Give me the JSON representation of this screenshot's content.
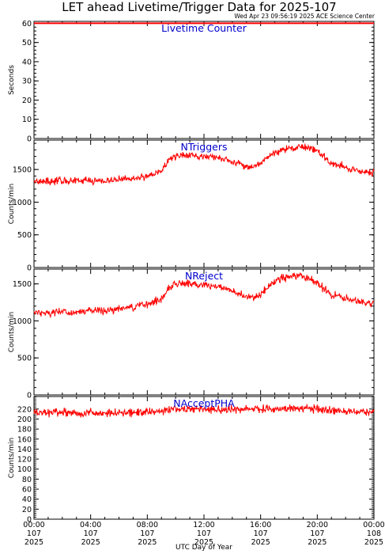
{
  "title": "LET ahead Livetime/Trigger Data for 2025-107",
  "timestamp": "Wed Apr 23 09:56:19 2025 ACE Science Center",
  "xlabel": "UTC Day of Year",
  "colors": {
    "series": "#ff0000",
    "panel_label": "#0000cc",
    "axes": "#000000"
  },
  "x_ticks": [
    {
      "hour": 0,
      "lines": [
        "00:00",
        "107",
        "2025"
      ]
    },
    {
      "hour": 4,
      "lines": [
        "04:00",
        "107",
        "2025"
      ]
    },
    {
      "hour": 8,
      "lines": [
        "08:00",
        "107",
        "2025"
      ]
    },
    {
      "hour": 12,
      "lines": [
        "12:00",
        "107",
        "2025"
      ]
    },
    {
      "hour": 16,
      "lines": [
        "16:00",
        "107",
        "2025"
      ]
    },
    {
      "hour": 20,
      "lines": [
        "20:00",
        "107",
        "2025"
      ]
    },
    {
      "hour": 24,
      "lines": [
        "00:00",
        "108",
        "2025"
      ]
    }
  ],
  "chart_data": [
    {
      "type": "line",
      "label": "Livetime Counter",
      "ylabel": "Seconds",
      "xlim": [
        0,
        24
      ],
      "ylim": [
        0,
        61
      ],
      "yticks": [
        0,
        10,
        20,
        30,
        40,
        50,
        60
      ],
      "series": [
        {
          "x": [
            0,
            24
          ],
          "values": [
            60,
            60
          ]
        }
      ]
    },
    {
      "type": "line",
      "label": "NTriggers",
      "ylabel": "Counts/min",
      "xlim": [
        0,
        24
      ],
      "ylim": [
        0,
        1950
      ],
      "yticks": [
        0,
        500,
        1000,
        1500
      ],
      "series": [
        {
          "x": [
            0,
            1,
            2,
            3,
            4,
            5,
            6,
            7,
            8,
            9,
            9.5,
            10,
            11,
            12,
            13,
            14,
            15,
            15.5,
            16,
            16.5,
            17,
            18,
            19,
            20,
            21,
            22,
            23,
            24
          ],
          "values": [
            1330,
            1320,
            1330,
            1320,
            1340,
            1320,
            1350,
            1360,
            1400,
            1480,
            1650,
            1700,
            1720,
            1700,
            1680,
            1620,
            1560,
            1540,
            1600,
            1680,
            1760,
            1820,
            1850,
            1780,
            1600,
            1530,
            1480,
            1460
          ],
          "noise": 55
        }
      ]
    },
    {
      "type": "line",
      "label": "NReject",
      "ylabel": "Counts/min",
      "xlim": [
        0,
        24
      ],
      "ylim": [
        0,
        1700
      ],
      "yticks": [
        0,
        500,
        1000,
        1500
      ],
      "series": [
        {
          "x": [
            0,
            1,
            2,
            3,
            4,
            5,
            6,
            7,
            8,
            9,
            9.5,
            10,
            11,
            12,
            13,
            14,
            15,
            15.5,
            16,
            16.5,
            17,
            18,
            19,
            20,
            21,
            22,
            23,
            24
          ],
          "values": [
            1120,
            1110,
            1120,
            1110,
            1140,
            1130,
            1170,
            1180,
            1230,
            1300,
            1450,
            1500,
            1510,
            1490,
            1460,
            1400,
            1330,
            1300,
            1360,
            1450,
            1540,
            1600,
            1620,
            1510,
            1350,
            1300,
            1260,
            1240
          ],
          "noise": 50
        }
      ]
    },
    {
      "type": "line",
      "label": "NAcceptPHA",
      "ylabel": "Counts/min",
      "xlim": [
        0,
        24
      ],
      "ylim": [
        0,
        245
      ],
      "yticks": [
        0,
        20,
        40,
        60,
        80,
        100,
        120,
        140,
        160,
        180,
        200,
        220
      ],
      "series": [
        {
          "x": [
            0,
            4,
            8,
            10,
            12,
            14,
            16,
            18,
            20,
            22,
            24
          ],
          "values": [
            213,
            212,
            214,
            220,
            220,
            219,
            220,
            222,
            220,
            216,
            214
          ],
          "noise": 8
        }
      ]
    }
  ]
}
